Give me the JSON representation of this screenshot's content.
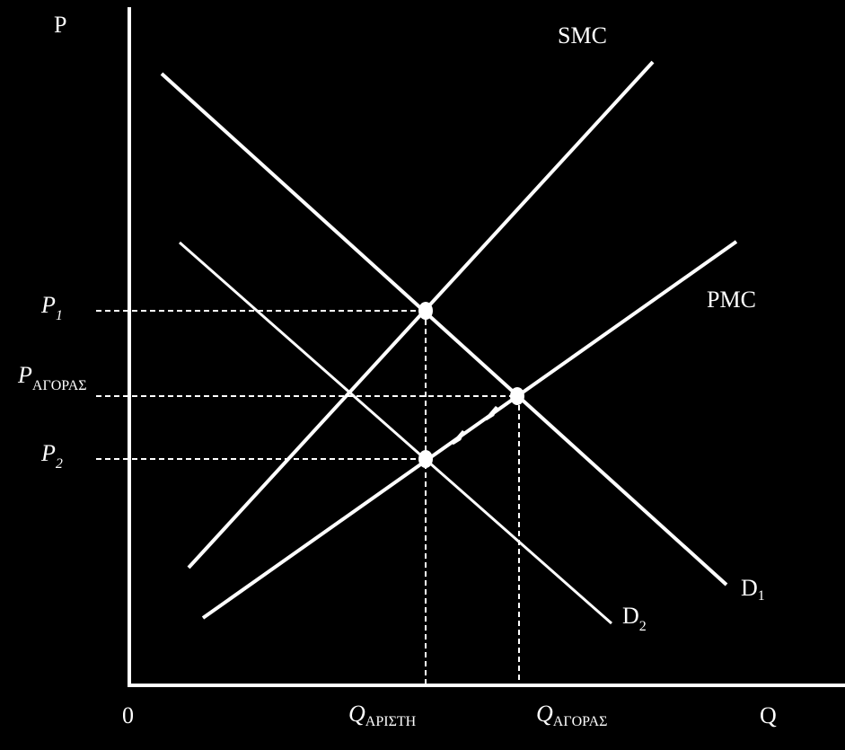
{
  "axes": {
    "y_label": "P",
    "x_label": "Q",
    "origin": "0"
  },
  "curves": {
    "smc": "SMC",
    "pmc": "PMC",
    "d1": {
      "base": "D",
      "sub": "1"
    },
    "d2": {
      "base": "D",
      "sub": "2"
    }
  },
  "price_labels": [
    {
      "base": "P",
      "sub": "1"
    },
    {
      "base": "P",
      "sub": "ΑΓΟΡΑΣ"
    },
    {
      "base": "P",
      "sub": "2"
    }
  ],
  "quantity_labels": [
    {
      "base": "Q",
      "sub": "ΑΡΙΣΤΗ"
    },
    {
      "base": "Q",
      "sub": "ΑΓΟΡΑΣ"
    }
  ]
}
